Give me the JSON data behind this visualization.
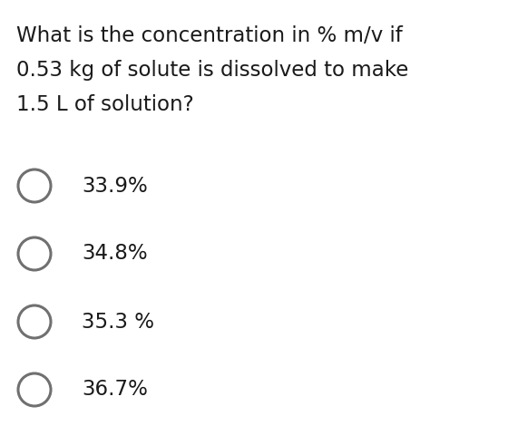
{
  "question_lines": [
    "What is the concentration in % m/v if",
    "0.53 kg of solute is dissolved to make",
    "1.5 L of solution?"
  ],
  "options": [
    "33.9%",
    "34.8%",
    "35.3 %",
    "36.7%"
  ],
  "background_color": "#ffffff",
  "text_color": "#1a1a1a",
  "circle_color": "#707070",
  "question_fontsize": 16.5,
  "option_fontsize": 16.5,
  "fig_width": 5.6,
  "fig_height": 4.91,
  "dpi": 100
}
